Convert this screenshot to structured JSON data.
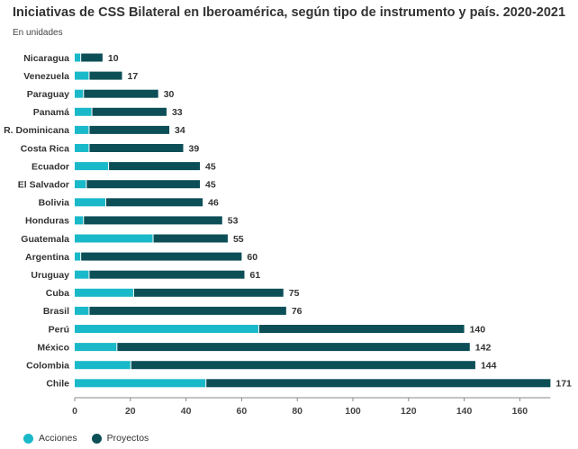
{
  "title": "Iniciativas de CSS Bilateral en Iberoamérica, según tipo de instrumento y país. 2020-2021",
  "subtitle": "En unidades",
  "colors": {
    "acciones": "#1ab9c9",
    "proyectos": "#0d4f57"
  },
  "chart_data": {
    "type": "bar",
    "orientation": "horizontal",
    "stacked": true,
    "categories": [
      "Nicaragua",
      "Venezuela",
      "Paraguay",
      "Panamá",
      "R. Dominicana",
      "Costa Rica",
      "Ecuador",
      "El Salvador",
      "Bolivia",
      "Honduras",
      "Guatemala",
      "Argentina",
      "Uruguay",
      "Cuba",
      "Brasil",
      "Perú",
      "México",
      "Colombia",
      "Chile"
    ],
    "series": [
      {
        "name": "Acciones",
        "values": [
          2,
          5,
          3,
          6,
          5,
          5,
          12,
          4,
          11,
          3,
          28,
          2,
          5,
          21,
          5,
          66,
          15,
          20,
          47
        ]
      },
      {
        "name": "Proyectos",
        "values": [
          8,
          12,
          27,
          27,
          29,
          34,
          33,
          41,
          35,
          50,
          27,
          58,
          56,
          54,
          71,
          74,
          127,
          124,
          124
        ]
      }
    ],
    "totals": [
      10,
      17,
      30,
      33,
      34,
      39,
      45,
      45,
      46,
      53,
      55,
      60,
      61,
      75,
      76,
      140,
      142,
      144,
      171
    ],
    "xticks": [
      0,
      20,
      40,
      60,
      80,
      100,
      120,
      140,
      160
    ],
    "xlim": [
      0,
      171
    ],
    "legend_position": "bottom-left",
    "grid": false
  },
  "legend": [
    {
      "label": "Acciones",
      "color": "#1ab9c9"
    },
    {
      "label": "Proyectos",
      "color": "#0d4f57"
    }
  ]
}
